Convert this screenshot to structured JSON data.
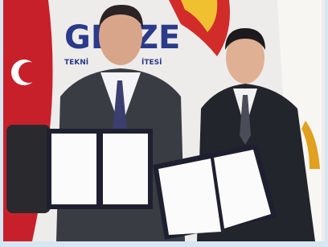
{
  "backdrop": {
    "logo_text_left": "GE",
    "logo_text_right": "ZE",
    "subtitle_left": "TEKNİ",
    "subtitle_right": "İTESİ"
  }
}
